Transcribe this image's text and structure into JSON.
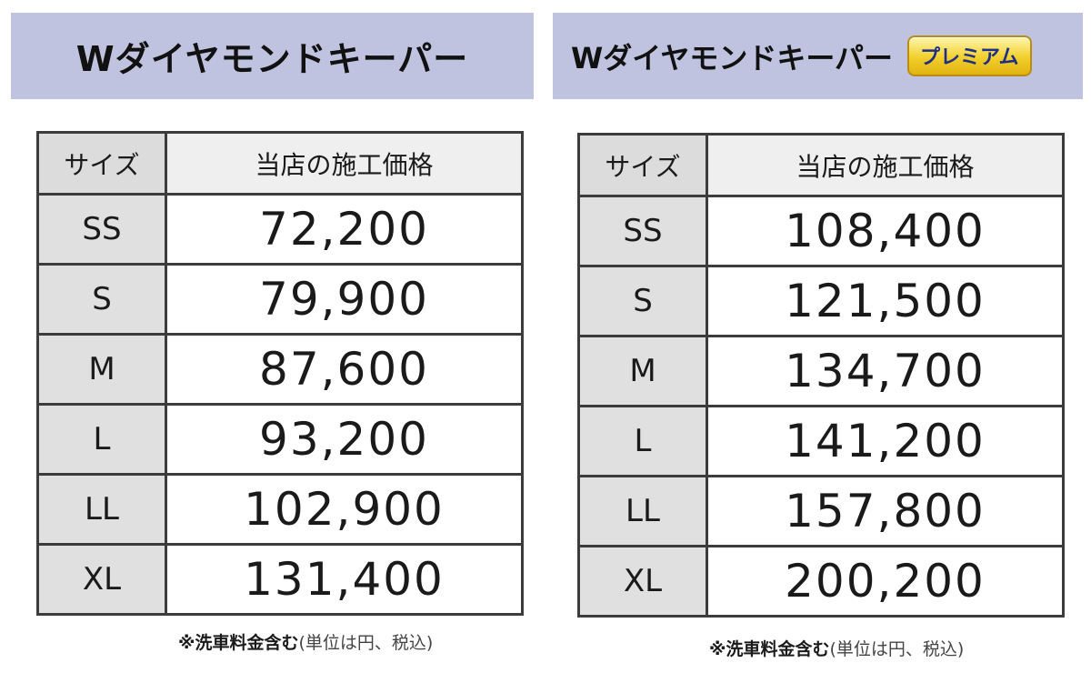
{
  "tables": [
    {
      "title": "Wダイヤモンドキーパー",
      "badge": "",
      "header": {
        "size": "サイズ",
        "price": "当店の施工価格"
      },
      "rows": [
        {
          "size": "SS",
          "price": "72,200"
        },
        {
          "size": "S",
          "price": "79,900"
        },
        {
          "size": "M",
          "price": "87,600"
        },
        {
          "size": "L",
          "price": "93,200"
        },
        {
          "size": "LL",
          "price": "102,900"
        },
        {
          "size": "XL",
          "price": "131,400"
        }
      ],
      "footnote_main": "※洗車料金含む",
      "footnote_sub": "(単位は円、税込)"
    },
    {
      "title": "Wダイヤモンドキーパー",
      "badge": "プレミアム",
      "header": {
        "size": "サイズ",
        "price": "当店の施工価格"
      },
      "rows": [
        {
          "size": "SS",
          "price": "108,400"
        },
        {
          "size": "S",
          "price": "121,500"
        },
        {
          "size": "M",
          "price": "134,700"
        },
        {
          "size": "L",
          "price": "141,200"
        },
        {
          "size": "LL",
          "price": "157,800"
        },
        {
          "size": "XL",
          "price": "200,200"
        }
      ],
      "footnote_main": "※洗車料金含む",
      "footnote_sub": "(単位は円、税込)"
    }
  ],
  "colors": {
    "title_bar": "#c0c3e0",
    "size_cell": "#e0e0e0",
    "border": "#3c3c3c",
    "badge_gold": "#f2cf2a",
    "badge_text": "#1d2f86"
  }
}
